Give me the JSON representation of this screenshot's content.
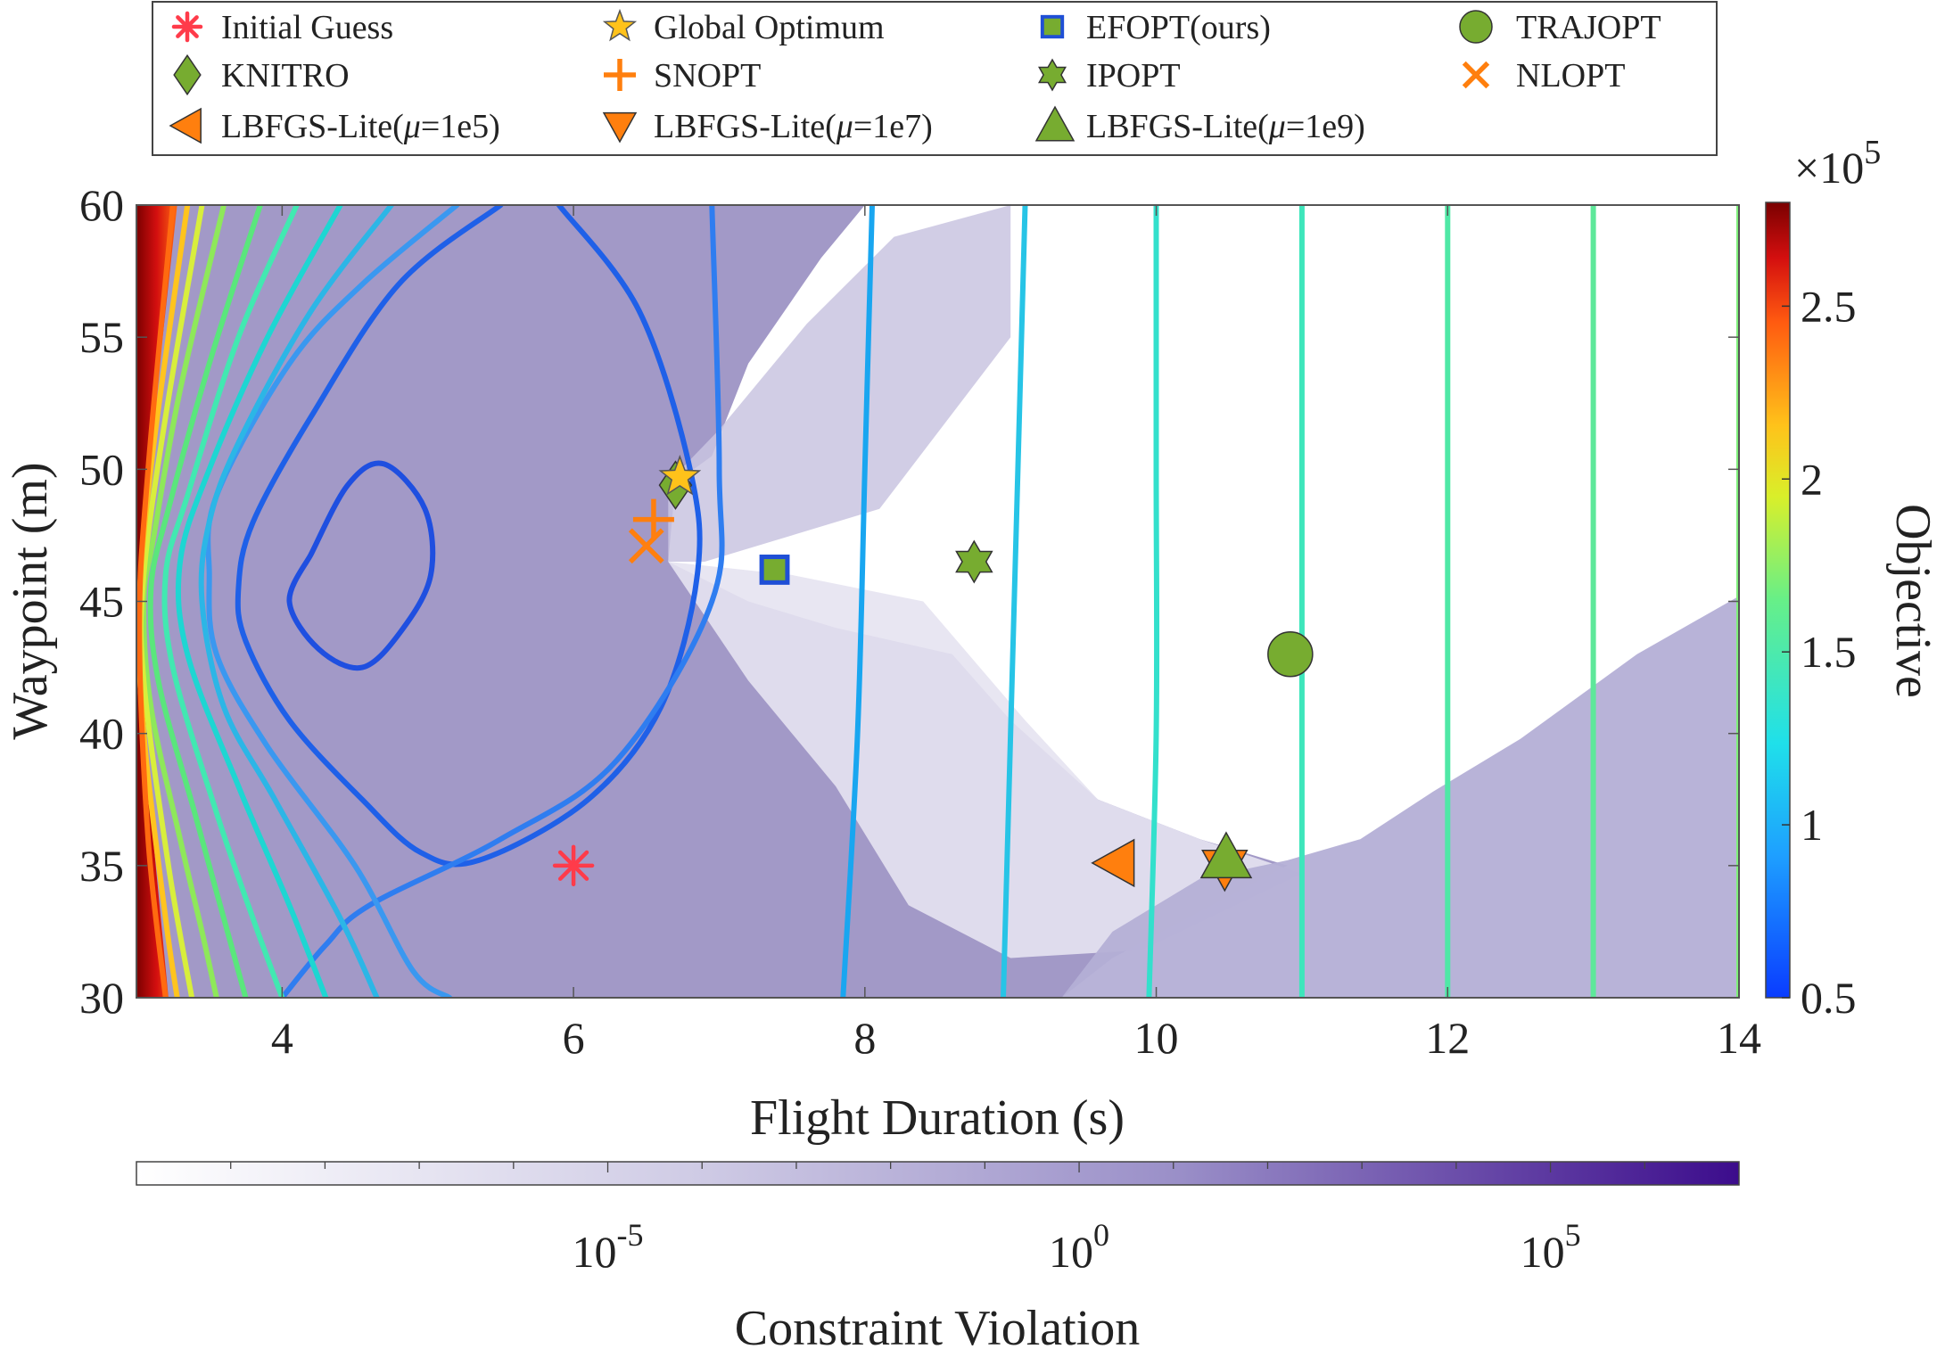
{
  "chart_data": {
    "type": "contour",
    "xlabel": "Flight Duration (s)",
    "ylabel": "Waypoint (m)",
    "xlim": [
      3,
      14
    ],
    "ylim": [
      30,
      60
    ],
    "xticks": [
      4,
      6,
      8,
      10,
      12,
      14
    ],
    "yticks": [
      30,
      35,
      40,
      45,
      50,
      55,
      60
    ],
    "objective_colorbar": {
      "label": "Objective",
      "multiplier_base": "×10",
      "multiplier_exp": "5",
      "range": [
        0.5,
        2.8
      ],
      "ticks": [
        "0.5",
        "1",
        "1.5",
        "2",
        "2.5"
      ],
      "tick_values": [
        0.5,
        1,
        1.5,
        2,
        2.5
      ]
    },
    "violation_colorbar": {
      "label": "Constraint Violation",
      "log_range": [
        -10,
        7
      ],
      "ticks": [
        {
          "base": "10",
          "exp": "-5",
          "log": -5
        },
        {
          "base": "10",
          "exp": "0",
          "log": 0
        },
        {
          "base": "10",
          "exp": "5",
          "log": 5
        }
      ]
    },
    "legend": {
      "placement": "top",
      "entries": [
        {
          "label": "Initial Guess",
          "marker": "asterisk",
          "color": "#ff3b4a"
        },
        {
          "label": "Global Optimum",
          "marker": "star",
          "color": "#ffc21a"
        },
        {
          "label": "EFOPT(ours)",
          "marker": "square",
          "color": "#77ac30",
          "edge": "#1f4fd6"
        },
        {
          "label": "TRAJOPT",
          "marker": "circle",
          "color": "#77ac30"
        },
        {
          "label": "KNITRO",
          "marker": "diamond",
          "color": "#77ac30"
        },
        {
          "label": "SNOPT",
          "marker": "plus",
          "color": "#ff7f0e"
        },
        {
          "label": "IPOPT",
          "marker": "hexagram",
          "color": "#77ac30"
        },
        {
          "label": "NLOPT",
          "marker": "x",
          "color": "#ff7f0e"
        },
        {
          "label_prefix": "LBFGS-Lite(",
          "mu": "μ",
          "label_suffix": "=1e5)",
          "marker": "triangle-left",
          "color": "#ff7f0e"
        },
        {
          "label_prefix": "LBFGS-Lite(",
          "mu": "μ",
          "label_suffix": "=1e7)",
          "marker": "triangle-down",
          "color": "#ff7f0e"
        },
        {
          "label_prefix": "LBFGS-Lite(",
          "mu": "μ",
          "label_suffix": "=1e9)",
          "marker": "triangle-up",
          "color": "#77ac30"
        }
      ]
    },
    "points": [
      {
        "name": "Initial Guess",
        "x": 6.0,
        "y": 35.0,
        "marker": "asterisk",
        "color": "#ff3b4a"
      },
      {
        "name": "KNITRO",
        "x": 6.7,
        "y": 49.4,
        "marker": "diamond",
        "color": "#77ac30"
      },
      {
        "name": "Global Optimum",
        "x": 6.73,
        "y": 49.7,
        "marker": "star",
        "color": "#ffc21a"
      },
      {
        "name": "SNOPT",
        "x": 6.55,
        "y": 48.1,
        "marker": "plus",
        "color": "#ff7f0e"
      },
      {
        "name": "NLOPT",
        "x": 6.5,
        "y": 47.1,
        "marker": "x",
        "color": "#ff7f0e"
      },
      {
        "name": "EFOPT(ours)",
        "x": 7.38,
        "y": 46.2,
        "marker": "square",
        "color": "#77ac30",
        "edge": "#1f4fd6"
      },
      {
        "name": "IPOPT",
        "x": 8.75,
        "y": 46.5,
        "marker": "hexagram",
        "color": "#77ac30"
      },
      {
        "name": "TRAJOPT",
        "x": 10.92,
        "y": 43.0,
        "marker": "circle",
        "color": "#77ac30"
      },
      {
        "name": "LBFGS-Lite(mu=1e5)",
        "x": 9.72,
        "y": 35.1,
        "marker": "triangle-left",
        "color": "#ff7f0e"
      },
      {
        "name": "LBFGS-Lite(mu=1e7)",
        "x": 10.47,
        "y": 34.9,
        "marker": "triangle-down",
        "color": "#ff7f0e"
      },
      {
        "name": "LBFGS-Lite(mu=1e9)",
        "x": 10.48,
        "y": 35.3,
        "marker": "triangle-up",
        "color": "#77ac30"
      }
    ],
    "contours": [
      {
        "level": 0.55,
        "color": "#1f4fe0",
        "points": [
          [
            4.2,
            46.8
          ],
          [
            4.45,
            49.4
          ],
          [
            4.7,
            50.2
          ],
          [
            4.98,
            48.5
          ],
          [
            5.02,
            46.0
          ],
          [
            4.82,
            43.9
          ],
          [
            4.55,
            42.5
          ],
          [
            4.25,
            43.2
          ],
          [
            4.05,
            45.0
          ],
          [
            4.2,
            46.8
          ]
        ]
      },
      {
        "level": 0.7,
        "color": "#1f60e8",
        "points": [
          [
            5.9,
            60
          ],
          [
            6.45,
            56
          ],
          [
            6.8,
            50
          ],
          [
            6.85,
            46
          ],
          [
            6.6,
            41
          ],
          [
            6.1,
            37.5
          ],
          [
            5.35,
            35.2
          ],
          [
            4.95,
            35.5
          ],
          [
            4.55,
            37.5
          ],
          [
            4.05,
            40.5
          ],
          [
            3.75,
            43.5
          ],
          [
            3.7,
            45.5
          ],
          [
            3.8,
            48
          ],
          [
            4.2,
            52
          ],
          [
            4.8,
            57
          ],
          [
            5.5,
            60
          ]
        ]
      },
      {
        "level": 0.78,
        "color": "#2f7df0",
        "points": [
          [
            6.95,
            60
          ],
          [
            7.0,
            50
          ],
          [
            6.95,
            45
          ],
          [
            6.3,
            39
          ],
          [
            5.5,
            36
          ],
          [
            4.6,
            33.5
          ],
          [
            4.3,
            32
          ],
          [
            4.0,
            30
          ]
        ]
      },
      {
        "level": 0.86,
        "color": "#3a98f0",
        "points": [
          [
            5.2,
            60
          ],
          [
            4.55,
            57
          ],
          [
            4.05,
            54
          ],
          [
            3.55,
            49
          ],
          [
            3.5,
            46
          ],
          [
            3.55,
            43
          ],
          [
            3.9,
            39.5
          ],
          [
            4.5,
            35
          ],
          [
            4.9,
            31
          ],
          [
            5.15,
            30
          ]
        ]
      },
      {
        "level": 0.95,
        "color": "#19a6f0",
        "points": [
          [
            8.05,
            60
          ],
          [
            8.0,
            50
          ],
          [
            7.95,
            40
          ],
          [
            7.85,
            30
          ]
        ]
      },
      {
        "level": 1.02,
        "color": "#2cb6e6",
        "points": [
          [
            4.75,
            60
          ],
          [
            4.2,
            56
          ],
          [
            3.7,
            51
          ],
          [
            3.5,
            48
          ],
          [
            3.45,
            45
          ],
          [
            3.6,
            41
          ],
          [
            3.95,
            37.5
          ],
          [
            4.4,
            33
          ],
          [
            4.65,
            30
          ]
        ]
      },
      {
        "level": 1.1,
        "color": "#27c4e6",
        "points": [
          [
            9.1,
            60
          ],
          [
            9.05,
            50
          ],
          [
            9.0,
            40
          ],
          [
            8.95,
            30
          ]
        ]
      },
      {
        "level": 1.15,
        "color": "#1ed6d2",
        "points": [
          [
            4.4,
            60
          ],
          [
            3.9,
            55
          ],
          [
            3.5,
            50
          ],
          [
            3.3,
            46.5
          ],
          [
            3.35,
            43
          ],
          [
            3.7,
            38
          ],
          [
            4.05,
            33.5
          ],
          [
            4.3,
            30
          ]
        ]
      },
      {
        "level": 1.2,
        "color": "#33e0cc",
        "points": [
          [
            10.0,
            60
          ],
          [
            10.0,
            50
          ],
          [
            10.0,
            40
          ],
          [
            9.95,
            30
          ]
        ]
      },
      {
        "level": 1.25,
        "color": "#3de6bb",
        "points": [
          [
            11.0,
            60
          ],
          [
            11.0,
            45
          ],
          [
            11.0,
            30
          ]
        ]
      },
      {
        "level": 1.32,
        "color": "#42e8b1",
        "points": [
          [
            4.1,
            60
          ],
          [
            3.7,
            55
          ],
          [
            3.35,
            49
          ],
          [
            3.2,
            46
          ],
          [
            3.25,
            42.5
          ],
          [
            3.55,
            37
          ],
          [
            3.8,
            33
          ],
          [
            4.0,
            30
          ]
        ]
      },
      {
        "level": 1.35,
        "color": "#4fe8a6",
        "points": [
          [
            12.0,
            60
          ],
          [
            12.0,
            45
          ],
          [
            12.0,
            30
          ]
        ]
      },
      {
        "level": 1.45,
        "color": "#5ee89a",
        "points": [
          [
            13.0,
            60
          ],
          [
            13.0,
            45
          ],
          [
            13.0,
            30
          ]
        ]
      },
      {
        "level": 1.5,
        "color": "#5ae67c",
        "points": [
          [
            3.85,
            60
          ],
          [
            3.5,
            54
          ],
          [
            3.22,
            48.5
          ],
          [
            3.1,
            45.5
          ],
          [
            3.15,
            42
          ],
          [
            3.4,
            37
          ],
          [
            3.6,
            33
          ],
          [
            3.75,
            30
          ]
        ]
      },
      {
        "level": 1.55,
        "color": "#7ff07a",
        "points": [
          [
            14.0,
            60
          ],
          [
            14.0,
            45
          ],
          [
            14.0,
            30
          ]
        ]
      },
      {
        "level": 1.7,
        "color": "#8ee85a",
        "points": [
          [
            3.6,
            60
          ],
          [
            3.3,
            53
          ],
          [
            3.12,
            47.5
          ],
          [
            3.05,
            45
          ],
          [
            3.1,
            41
          ],
          [
            3.3,
            36
          ],
          [
            3.45,
            32.5
          ],
          [
            3.55,
            30
          ]
        ]
      },
      {
        "level": 1.9,
        "color": "#d8ee3c",
        "points": [
          [
            3.45,
            60
          ],
          [
            3.2,
            52
          ],
          [
            3.05,
            46
          ],
          [
            3.05,
            42
          ],
          [
            3.22,
            35
          ],
          [
            3.38,
            30
          ]
        ]
      },
      {
        "level": 2.1,
        "color": "#ffc41e",
        "points": [
          [
            3.35,
            60
          ],
          [
            3.12,
            51
          ],
          [
            3.02,
            45
          ],
          [
            3.05,
            40
          ],
          [
            3.2,
            33
          ],
          [
            3.28,
            30
          ]
        ]
      },
      {
        "level": 2.4,
        "color": "#ff6a10",
        "points": [
          [
            3.25,
            60
          ],
          [
            3.08,
            50
          ],
          [
            3.02,
            44
          ],
          [
            3.08,
            36
          ],
          [
            3.2,
            30
          ]
        ]
      }
    ],
    "violation_regions": [
      {
        "name": "high-violation-left",
        "color": "#9d93c4",
        "opacity": 0.95,
        "points": [
          [
            3,
            30
          ],
          [
            3,
            60
          ],
          [
            8.0,
            60
          ],
          [
            7.7,
            58
          ],
          [
            7.2,
            54
          ],
          [
            6.95,
            50.5
          ],
          [
            6.7,
            49.5
          ],
          [
            6.65,
            46.5
          ],
          [
            7.2,
            45
          ],
          [
            7.8,
            44
          ],
          [
            8.6,
            43
          ],
          [
            9.0,
            40.5
          ],
          [
            9.6,
            37.5
          ],
          [
            10.3,
            36
          ],
          [
            10.9,
            35
          ],
          [
            9.7,
            31.5
          ],
          [
            9.35,
            30
          ]
        ]
      },
      {
        "name": "medium-violation-band",
        "color": "#c9c4e0",
        "opacity": 0.85,
        "points": [
          [
            6.65,
            49.5
          ],
          [
            7.0,
            51.5
          ],
          [
            7.6,
            55.5
          ],
          [
            8.2,
            58.8
          ],
          [
            9.0,
            60
          ],
          [
            9.0,
            55
          ],
          [
            8.1,
            48.5
          ],
          [
            6.9,
            46.5
          ],
          [
            6.65,
            46.5
          ]
        ]
      },
      {
        "name": "low-violation-band",
        "color": "#e6e3f1",
        "opacity": 0.9,
        "points": [
          [
            6.65,
            46.5
          ],
          [
            7.5,
            46
          ],
          [
            8.4,
            45
          ],
          [
            9.1,
            40.5
          ],
          [
            9.6,
            37.5
          ],
          [
            10.3,
            36
          ],
          [
            11.0,
            34.7
          ],
          [
            9.9,
            31.8
          ],
          [
            9.0,
            31.5
          ],
          [
            8.3,
            33.5
          ],
          [
            7.8,
            38
          ],
          [
            7.2,
            42
          ],
          [
            6.65,
            46.5
          ]
        ]
      },
      {
        "name": "high-violation-right",
        "color": "#b4afd6",
        "opacity": 0.95,
        "points": [
          [
            9.35,
            30
          ],
          [
            14,
            30
          ],
          [
            14,
            45.2
          ],
          [
            13.3,
            43
          ],
          [
            12.5,
            39.8
          ],
          [
            11.9,
            37.8
          ],
          [
            11.4,
            36
          ],
          [
            10.9,
            35.2
          ],
          [
            10.3,
            34.5
          ],
          [
            9.7,
            32.5
          ]
        ]
      }
    ]
  }
}
